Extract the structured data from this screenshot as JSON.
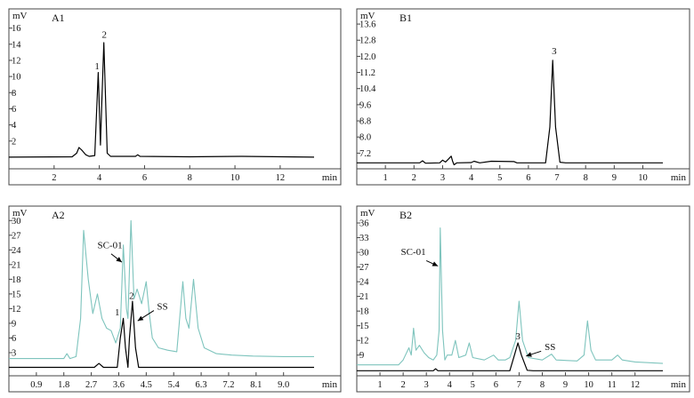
{
  "chart_data": [
    {
      "type": "line",
      "title": "A1",
      "ylabel": "mV",
      "xlabel": "min",
      "xlim": [
        0,
        13.5
      ],
      "ylim": [
        -1,
        17.5
      ],
      "x_ticks": [
        "2",
        "4",
        "6",
        "8",
        "10",
        "12"
      ],
      "y_ticks": [
        "2",
        "4",
        "6",
        "8",
        "10",
        "12",
        "14",
        "16"
      ],
      "grid": false,
      "series": [
        {
          "color": "#000000",
          "points": [
            [
              0,
              0
            ],
            [
              2.8,
              0.05
            ],
            [
              3.0,
              0.5
            ],
            [
              3.1,
              1.2
            ],
            [
              3.25,
              0.8
            ],
            [
              3.4,
              0.3
            ],
            [
              3.55,
              0.1
            ],
            [
              3.8,
              0.2
            ],
            [
              3.95,
              10.5
            ],
            [
              4.05,
              1.5
            ],
            [
              4.1,
              6
            ],
            [
              4.2,
              14.2
            ],
            [
              4.28,
              7
            ],
            [
              4.35,
              0.5
            ],
            [
              4.5,
              0.1
            ],
            [
              5.6,
              0.1
            ],
            [
              5.7,
              0.3
            ],
            [
              5.8,
              0.1
            ],
            [
              8.0,
              0.05
            ],
            [
              10.3,
              0.1
            ],
            [
              13.5,
              0
            ]
          ]
        }
      ],
      "annotations": [
        "1",
        "2"
      ]
    },
    {
      "type": "line",
      "title": "B1",
      "ylabel": "mV",
      "xlabel": "min",
      "xlim": [
        0,
        10.7
      ],
      "ylim": [
        6.6,
        14.0
      ],
      "x_ticks": [
        "1",
        "2",
        "3",
        "4",
        "5",
        "6",
        "7",
        "8",
        "9",
        "10"
      ],
      "y_ticks": [
        "7.2",
        "8.0",
        "8.8",
        "9.6",
        "10.4",
        "11.2",
        "12.0",
        "12.8",
        "13.6"
      ],
      "grid": false,
      "series": [
        {
          "color": "#000000",
          "points": [
            [
              0,
              6.72
            ],
            [
              2.2,
              6.72
            ],
            [
              2.3,
              6.82
            ],
            [
              2.4,
              6.7
            ],
            [
              2.9,
              6.72
            ],
            [
              3.0,
              6.85
            ],
            [
              3.1,
              6.76
            ],
            [
              3.2,
              6.9
            ],
            [
              3.3,
              7.05
            ],
            [
              3.35,
              6.8
            ],
            [
              3.4,
              6.62
            ],
            [
              3.5,
              6.72
            ],
            [
              4.0,
              6.73
            ],
            [
              4.1,
              6.8
            ],
            [
              4.3,
              6.72
            ],
            [
              4.7,
              6.8
            ],
            [
              5.5,
              6.78
            ],
            [
              5.6,
              6.72
            ],
            [
              6.6,
              6.72
            ],
            [
              6.75,
              8.5
            ],
            [
              6.85,
              11.8
            ],
            [
              6.95,
              8.5
            ],
            [
              7.1,
              6.75
            ],
            [
              7.3,
              6.72
            ],
            [
              10.7,
              6.72
            ]
          ]
        }
      ],
      "annotations": [
        "3"
      ]
    },
    {
      "type": "line",
      "title": "A2",
      "ylabel": "mV",
      "xlabel": "min",
      "xlim": [
        0,
        10.0
      ],
      "ylim": [
        -1,
        31.5
      ],
      "x_ticks": [
        "0.9",
        "1.8",
        "2.7",
        "3.6",
        "4.5",
        "5.4",
        "6.3",
        "7.2",
        "8.1",
        "9.0"
      ],
      "y_ticks": [
        "3",
        "6",
        "9",
        "12",
        "15",
        "18",
        "21",
        "24",
        "27",
        "30"
      ],
      "grid": false,
      "series": [
        {
          "color": "#7ec4bd",
          "points": [
            [
              0,
              1.8
            ],
            [
              1.8,
              1.8
            ],
            [
              1.9,
              2.8
            ],
            [
              2.0,
              1.8
            ],
            [
              2.2,
              2.2
            ],
            [
              2.35,
              10
            ],
            [
              2.45,
              28
            ],
            [
              2.6,
              18
            ],
            [
              2.75,
              11
            ],
            [
              2.9,
              15
            ],
            [
              3.05,
              10
            ],
            [
              3.2,
              8
            ],
            [
              3.35,
              7.5
            ],
            [
              3.5,
              5
            ],
            [
              3.65,
              8
            ],
            [
              3.75,
              25
            ],
            [
              3.85,
              12
            ],
            [
              3.9,
              10
            ],
            [
              4.0,
              30
            ],
            [
              4.1,
              14
            ],
            [
              4.2,
              16
            ],
            [
              4.35,
              13
            ],
            [
              4.5,
              17.5
            ],
            [
              4.6,
              11
            ],
            [
              4.7,
              6
            ],
            [
              4.9,
              4
            ],
            [
              5.2,
              3.5
            ],
            [
              5.5,
              3.2
            ],
            [
              5.7,
              17.5
            ],
            [
              5.8,
              10
            ],
            [
              5.9,
              8
            ],
            [
              6.05,
              18
            ],
            [
              6.2,
              8
            ],
            [
              6.4,
              4
            ],
            [
              6.8,
              2.8
            ],
            [
              7.3,
              2.5
            ],
            [
              8.0,
              2.3
            ],
            [
              9.0,
              2.2
            ],
            [
              10,
              2.2
            ]
          ]
        },
        {
          "color": "#000000",
          "points": [
            [
              0,
              0
            ],
            [
              2.8,
              0
            ],
            [
              2.95,
              0.8
            ],
            [
              3.1,
              0
            ],
            [
              3.55,
              0
            ],
            [
              3.65,
              6
            ],
            [
              3.75,
              10
            ],
            [
              3.82,
              4
            ],
            [
              3.9,
              0
            ],
            [
              3.95,
              6
            ],
            [
              4.05,
              13.5
            ],
            [
              4.15,
              4
            ],
            [
              4.25,
              0
            ],
            [
              4.5,
              0
            ],
            [
              10,
              0
            ]
          ]
        }
      ],
      "annotations": [
        "SC-01",
        "SS",
        "1",
        "2"
      ]
    },
    {
      "type": "line",
      "title": "B2",
      "ylabel": "mV",
      "xlabel": "min",
      "xlim": [
        0,
        13.2
      ],
      "ylim": [
        5.5,
        38
      ],
      "x_ticks": [
        "1",
        "2",
        "3",
        "4",
        "5",
        "6",
        "7",
        "8",
        "9",
        "10",
        "11",
        "12"
      ],
      "y_ticks": [
        "9",
        "12",
        "15",
        "18",
        "21",
        "24",
        "27",
        "30",
        "33",
        "36"
      ],
      "grid": false,
      "series": [
        {
          "color": "#7ec4bd",
          "points": [
            [
              0,
              7
            ],
            [
              1.8,
              7
            ],
            [
              2.0,
              8
            ],
            [
              2.1,
              9
            ],
            [
              2.25,
              10.5
            ],
            [
              2.35,
              9
            ],
            [
              2.45,
              14.5
            ],
            [
              2.55,
              10
            ],
            [
              2.7,
              11
            ],
            [
              2.9,
              9.5
            ],
            [
              3.1,
              8.5
            ],
            [
              3.3,
              8
            ],
            [
              3.45,
              9
            ],
            [
              3.55,
              14
            ],
            [
              3.6,
              35
            ],
            [
              3.7,
              14
            ],
            [
              3.8,
              8
            ],
            [
              3.9,
              9
            ],
            [
              4.1,
              9
            ],
            [
              4.25,
              12
            ],
            [
              4.4,
              8.5
            ],
            [
              4.7,
              9
            ],
            [
              4.85,
              11.5
            ],
            [
              5.0,
              8.5
            ],
            [
              5.5,
              8
            ],
            [
              5.9,
              9
            ],
            [
              6.1,
              8
            ],
            [
              6.4,
              8
            ],
            [
              6.6,
              8.5
            ],
            [
              6.85,
              12
            ],
            [
              7.0,
              20
            ],
            [
              7.15,
              12
            ],
            [
              7.4,
              8.5
            ],
            [
              8.0,
              8
            ],
            [
              8.4,
              9.2
            ],
            [
              8.6,
              8
            ],
            [
              9.5,
              7.8
            ],
            [
              9.8,
              9
            ],
            [
              9.95,
              16
            ],
            [
              10.1,
              10
            ],
            [
              10.3,
              8
            ],
            [
              11,
              8
            ],
            [
              11.25,
              9
            ],
            [
              11.45,
              8
            ],
            [
              12,
              7.6
            ],
            [
              13.2,
              7.3
            ]
          ]
        },
        {
          "color": "#000000",
          "points": [
            [
              0,
              5.8
            ],
            [
              3.3,
              5.8
            ],
            [
              3.4,
              6.2
            ],
            [
              3.5,
              5.8
            ],
            [
              6.6,
              5.8
            ],
            [
              6.8,
              9
            ],
            [
              6.95,
              11.5
            ],
            [
              7.1,
              9
            ],
            [
              7.35,
              5.9
            ],
            [
              7.6,
              5.8
            ],
            [
              13.2,
              5.8
            ]
          ]
        }
      ],
      "annotations": [
        "SC-01",
        "SS",
        "3"
      ]
    }
  ]
}
